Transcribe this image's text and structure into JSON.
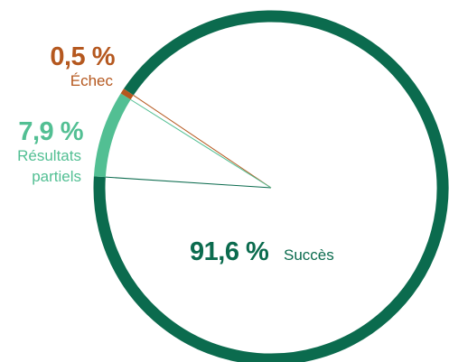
{
  "chart_data": {
    "type": "pie",
    "slices": [
      {
        "label": "Succès",
        "value": 91.6,
        "value_text": "91,6 %",
        "color": "#0b6b4e"
      },
      {
        "label": "Résultats partiels",
        "label_lines": [
          "Résultats",
          "partiels"
        ],
        "value": 7.9,
        "value_text": "7,9 %",
        "color": "#52bf93"
      },
      {
        "label": "Échec",
        "value": 0.5,
        "value_text": "0,5 %",
        "color": "#b5581f"
      }
    ]
  }
}
